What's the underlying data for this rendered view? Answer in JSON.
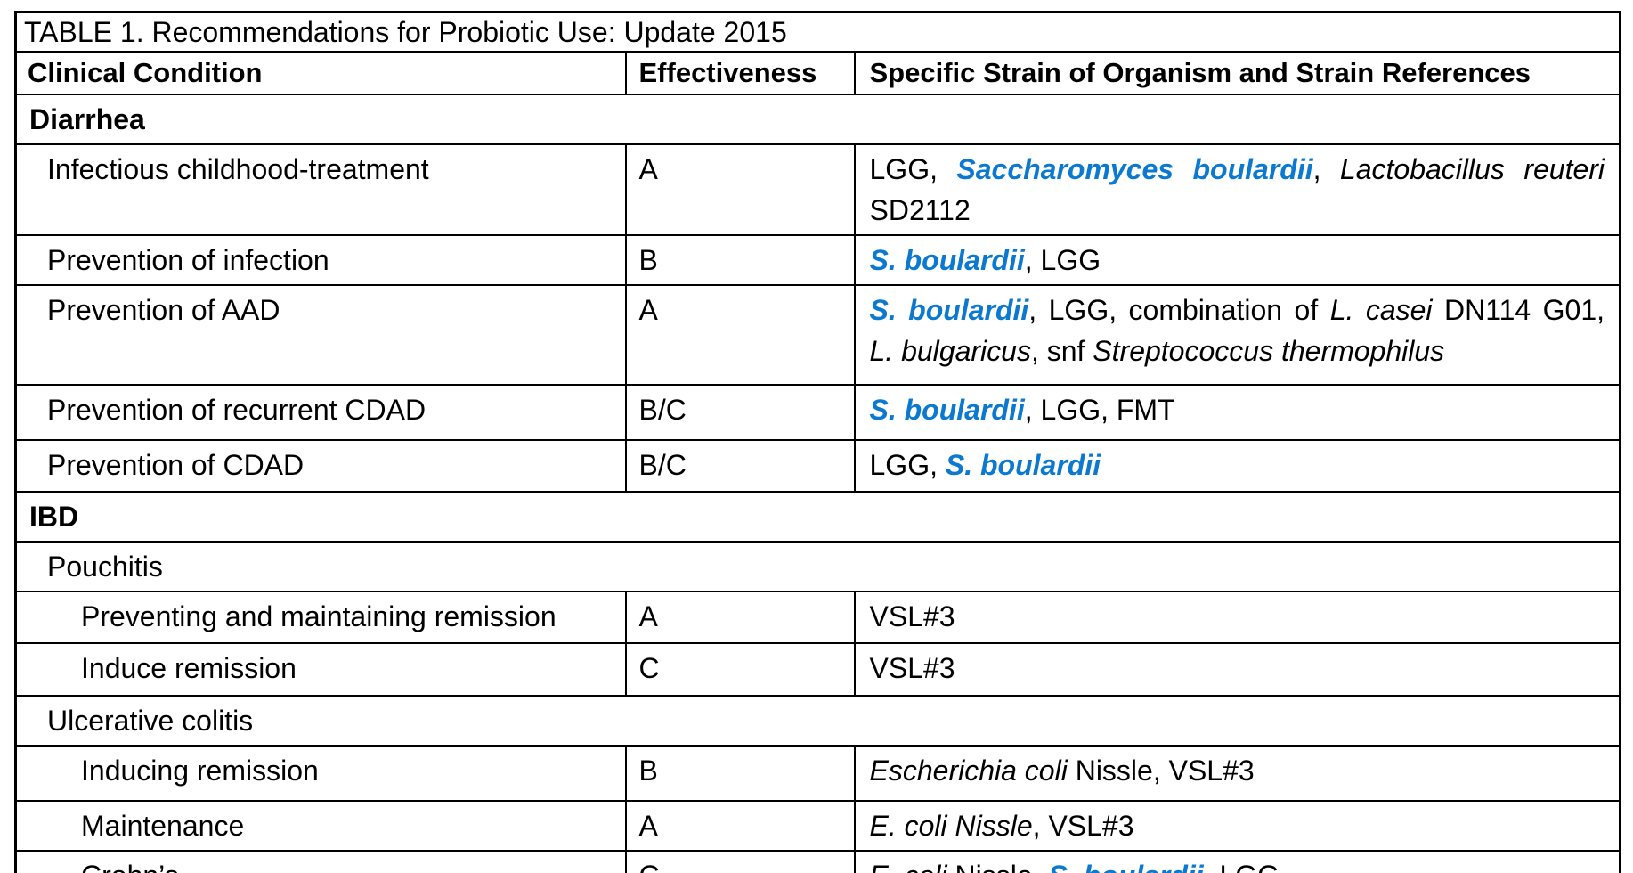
{
  "table": {
    "title": "TABLE 1. Recommendations for Probiotic Use: Update 2015",
    "headers": {
      "condition": "Clinical Condition",
      "effectiveness": "Effectiveness",
      "strains": "Specific Strain of Organism and Strain References"
    },
    "colors": {
      "strain_highlight_blue": "#0b79d0",
      "text": "#000000",
      "border": "#000000"
    },
    "rows": [
      {
        "kind": "section",
        "level": 0,
        "bold": true,
        "label": "Diarrhea"
      },
      {
        "kind": "data",
        "level": 1,
        "condition": "Infectious childhood-treatment",
        "effectiveness": "A",
        "strains": [
          {
            "justify": true,
            "segments": [
              {
                "t": "LGG, "
              },
              {
                "t": "Saccharomyces boulardii",
                "s": "highlight"
              },
              {
                "t": ", "
              },
              {
                "t": "Lactobacillus reuteri",
                "s": "italic"
              }
            ]
          },
          {
            "segments": [
              {
                "t": "SD2112"
              }
            ]
          }
        ]
      },
      {
        "kind": "data",
        "level": 1,
        "condition": "Prevention of infection",
        "effectiveness": "B",
        "strains": [
          {
            "segments": [
              {
                "t": "S. boulardii",
                "s": "highlight"
              },
              {
                "t": ", LGG"
              }
            ]
          }
        ]
      },
      {
        "kind": "data",
        "level": 1,
        "condition": "Prevention of AAD",
        "effectiveness": "A",
        "strains": [
          {
            "justify": true,
            "segments": [
              {
                "t": "S. boulardii",
                "s": "highlight"
              },
              {
                "t": ", LGG, combination of "
              },
              {
                "t": "L. casei",
                "s": "italic"
              },
              {
                "t": " DN114 G01,"
              }
            ]
          },
          {
            "segments": [
              {
                "t": "L. bulgaricus",
                "s": "italic"
              },
              {
                "t": ", snf "
              },
              {
                "t": "Streptococcus thermophilus",
                "s": "italic"
              }
            ]
          }
        ]
      },
      {
        "kind": "data",
        "level": 1,
        "condition": "Prevention of recurrent CDAD",
        "effectiveness": "B/C",
        "strains": [
          {
            "segments": [
              {
                "t": "S. boulardii",
                "s": "highlight"
              },
              {
                "t": ", LGG, FMT"
              }
            ]
          }
        ]
      },
      {
        "kind": "data",
        "level": 1,
        "condition": "Prevention of CDAD",
        "effectiveness": "B/C",
        "strains": [
          {
            "segments": [
              {
                "t": "LGG, "
              },
              {
                "t": "S. boulardii",
                "s": "highlight"
              }
            ]
          }
        ]
      },
      {
        "kind": "section",
        "level": 0,
        "bold": true,
        "label": "IBD"
      },
      {
        "kind": "section",
        "level": 1,
        "bold": false,
        "label": "Pouchitis"
      },
      {
        "kind": "data",
        "level": 2,
        "condition": "Preventing and maintaining remission",
        "effectiveness": "A",
        "strains": [
          {
            "segments": [
              {
                "t": "VSL#3"
              }
            ]
          }
        ]
      },
      {
        "kind": "data",
        "level": 2,
        "condition": "Induce remission",
        "effectiveness": "C",
        "strains": [
          {
            "segments": [
              {
                "t": "VSL#3"
              }
            ]
          }
        ]
      },
      {
        "kind": "section",
        "level": 1,
        "bold": false,
        "label": "Ulcerative colitis"
      },
      {
        "kind": "data",
        "level": 2,
        "condition": "Inducing remission",
        "effectiveness": "B",
        "strains": [
          {
            "segments": [
              {
                "t": "Escherichia coli",
                "s": "italic"
              },
              {
                "t": " Nissle, VSL#3"
              }
            ]
          }
        ]
      },
      {
        "kind": "data",
        "level": 2,
        "condition": "Maintenance",
        "effectiveness": "A",
        "strains": [
          {
            "segments": [
              {
                "t": "E. coli Nissle",
                "s": "italic"
              },
              {
                "t": ", VSL#3"
              }
            ]
          }
        ]
      },
      {
        "kind": "data",
        "level": 2,
        "condition": "Crohn’s",
        "effectiveness": "C",
        "strains": [
          {
            "segments": [
              {
                "t": "E. coli",
                "s": "italic"
              },
              {
                "t": " Nissle, "
              },
              {
                "t": "S. boulardii",
                "s": "highlight"
              },
              {
                "t": ", LGG"
              }
            ]
          }
        ]
      }
    ]
  }
}
